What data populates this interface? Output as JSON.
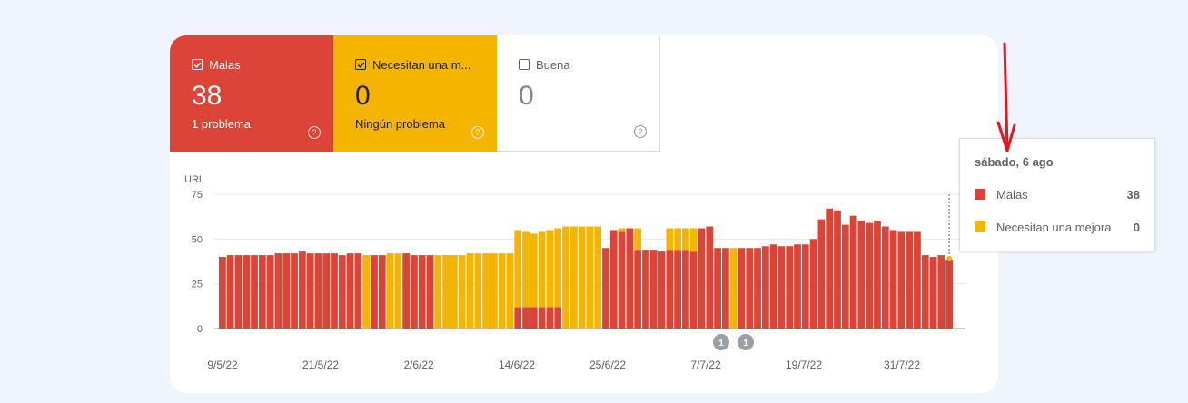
{
  "tiles": [
    {
      "label": "Malas",
      "value": "38",
      "sub": "1 problema",
      "checked": true
    },
    {
      "label": "Necesitan una m...",
      "value": "0",
      "sub": "Ningún problema",
      "checked": true
    },
    {
      "label": "Buena",
      "value": "0",
      "sub": "",
      "checked": false
    }
  ],
  "tooltip": {
    "title": "sábado, 6 ago",
    "rows": [
      {
        "label": "Malas",
        "value": "38",
        "color": "#dc4437"
      },
      {
        "label": "Necesitan una mejora",
        "value": "0",
        "color": "#f4b400"
      }
    ]
  },
  "colors": {
    "bad": "#dc4437",
    "needs": "#f4b400",
    "grid": "#e8eaed"
  },
  "chart_data": {
    "type": "bar",
    "stacked": true,
    "ylabel": "URL",
    "ylim": [
      0,
      75
    ],
    "yticks": [
      0,
      25,
      50,
      75
    ],
    "x_start": "9/5/22",
    "x_end": "6/8/22",
    "xtick_labels": [
      "9/5/22",
      "21/5/22",
      "2/6/22",
      "14/6/22",
      "25/6/22",
      "7/7/22",
      "19/7/22",
      "31/7/22"
    ],
    "annotations": [
      "1",
      "1"
    ],
    "series": [
      {
        "name": "Malas",
        "values": [
          40,
          41,
          41,
          41,
          41,
          41,
          41,
          42,
          42,
          42,
          43,
          42,
          42,
          42,
          42,
          41,
          42,
          42,
          0,
          41,
          41,
          0,
          0,
          42,
          41,
          41,
          41,
          0,
          0,
          0,
          0,
          0,
          0,
          0,
          0,
          0,
          0,
          12,
          12,
          12,
          12,
          12,
          12,
          0,
          0,
          0,
          0,
          0,
          45,
          55,
          54,
          56,
          44,
          44,
          44,
          43,
          44,
          44,
          44,
          43,
          56,
          57,
          45,
          45,
          0,
          45,
          45,
          45,
          46,
          47,
          46,
          46,
          47,
          47,
          50,
          61,
          67,
          66,
          58,
          63,
          60,
          59,
          60,
          57,
          55,
          54,
          54,
          54,
          41,
          40,
          41,
          38
        ]
      },
      {
        "name": "Necesitan una mejora",
        "values": [
          0,
          0,
          0,
          0,
          0,
          0,
          0,
          0,
          0,
          0,
          0,
          0,
          0,
          0,
          0,
          0,
          0,
          0,
          41,
          0,
          0,
          42,
          42,
          0,
          0,
          0,
          0,
          41,
          41,
          41,
          41,
          42,
          42,
          42,
          42,
          42,
          42,
          43,
          42,
          41,
          42,
          43,
          44,
          57,
          57,
          57,
          57,
          57,
          0,
          0,
          2,
          0,
          12,
          0,
          0,
          0,
          12,
          12,
          12,
          13,
          0,
          0,
          0,
          0,
          45,
          0,
          0,
          0,
          0,
          0,
          0,
          0,
          0,
          0,
          0,
          0,
          0,
          0,
          0,
          0,
          0,
          0,
          0,
          0,
          0,
          0,
          0,
          0,
          0,
          0,
          0,
          0
        ]
      }
    ]
  }
}
